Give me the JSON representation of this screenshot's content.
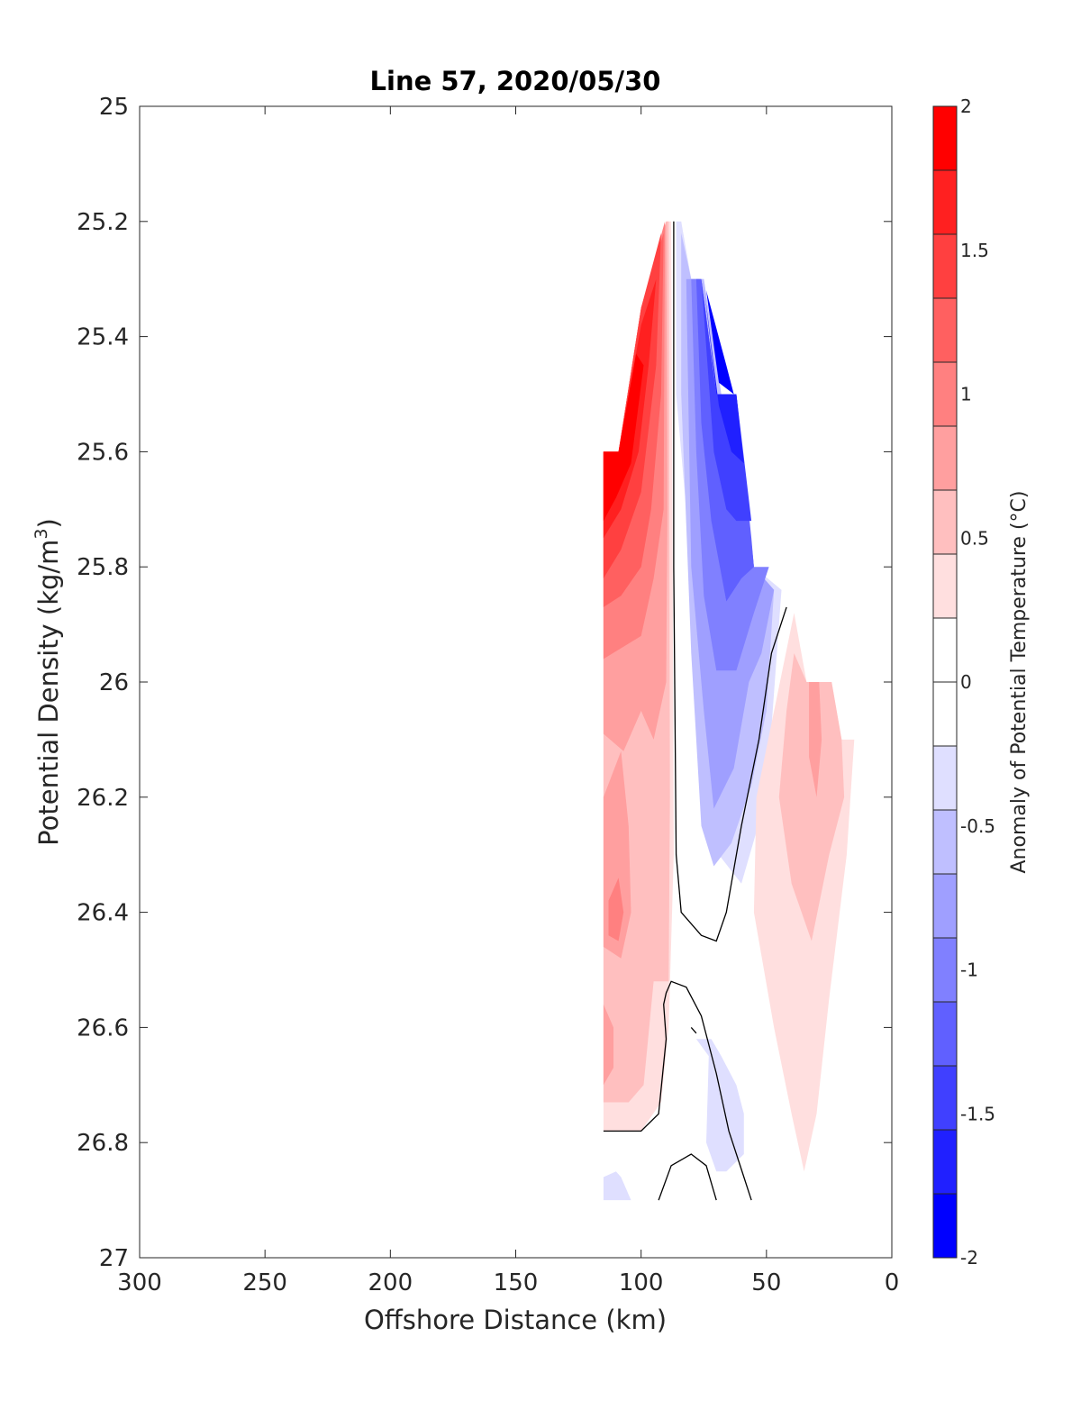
{
  "chart_data": {
    "type": "contour",
    "title": "Line 57, 2020/05/30",
    "xlabel": "Offshore Distance (km)",
    "ylabel_main": "Potential Density (kg/m",
    "ylabel_sup": "3",
    "ylabel_close": ")",
    "xlim": [
      300,
      0
    ],
    "ylim": [
      25,
      27
    ],
    "x_reversed": true,
    "y_reversed": true,
    "xticks": [
      300,
      250,
      200,
      150,
      100,
      50,
      0
    ],
    "xtick_labels": [
      "300",
      "250",
      "200",
      "150",
      "100",
      "50",
      "0"
    ],
    "yticks": [
      25,
      25.2,
      25.4,
      25.6,
      25.8,
      26,
      26.2,
      26.4,
      26.6,
      26.8,
      27
    ],
    "ytick_labels": [
      "25",
      "25.2",
      "25.4",
      "25.6",
      "25.8",
      "26",
      "26.2",
      "26.4",
      "26.6",
      "26.8",
      "27"
    ],
    "colorbar": {
      "label": "Anomaly of Potential Temperature (°C)",
      "min": -2,
      "max": 2,
      "step": 0.25,
      "ticks": [
        2,
        1.5,
        1,
        0.5,
        0,
        -0.5,
        -1,
        -1.5,
        -2
      ],
      "tick_labels": [
        "2",
        "1.5",
        "1",
        "0.5",
        "0",
        "-0.5",
        "-1",
        "-1.5",
        "-2"
      ],
      "colors_top_to_bottom": [
        "#ff0000",
        "#ff2020",
        "#ff4040",
        "#ff6060",
        "#ff8080",
        "#ff9f9f",
        "#ffbfbf",
        "#ffdfdf",
        "#ffffff",
        "#ffffff",
        "#dfdfff",
        "#bfbfff",
        "#9f9fff",
        "#8080ff",
        "#6060ff",
        "#4040ff",
        "#2020ff",
        "#0000ff"
      ]
    },
    "zero_contour_color": "#000000",
    "filled_regions": [
      {
        "level": 0.25,
        "color": "#ffdfdf",
        "points": [
          [
            115,
            25.6
          ],
          [
            109,
            25.6
          ],
          [
            100,
            25.35
          ],
          [
            90,
            25.2
          ],
          [
            88,
            25.2
          ],
          [
            87,
            26.3
          ],
          [
            89,
            26.6
          ],
          [
            92,
            26.73
          ],
          [
            100,
            26.78
          ],
          [
            115,
            26.78
          ]
        ]
      },
      {
        "level": 0.5,
        "color": "#ffbfbf",
        "points": [
          [
            115,
            25.6
          ],
          [
            109,
            25.6
          ],
          [
            100,
            25.35
          ],
          [
            90,
            25.2
          ],
          [
            89,
            25.2
          ],
          [
            88.5,
            26.2
          ],
          [
            89,
            26.52
          ],
          [
            95,
            26.52
          ],
          [
            99,
            26.7
          ],
          [
            105,
            26.73
          ],
          [
            115,
            26.73
          ]
        ]
      },
      {
        "level": 0.75,
        "color": "#ff9f9f",
        "points": [
          [
            115,
            25.6
          ],
          [
            109,
            25.6
          ],
          [
            100,
            25.35
          ],
          [
            90,
            25.2
          ],
          [
            89.5,
            25.7
          ],
          [
            90,
            26.0
          ],
          [
            95,
            26.1
          ],
          [
            100,
            26.05
          ],
          [
            107,
            26.12
          ],
          [
            115,
            26.09
          ]
        ]
      },
      {
        "level": 1.0,
        "color": "#ff8080",
        "points": [
          [
            115,
            25.6
          ],
          [
            109,
            25.6
          ],
          [
            100,
            25.35
          ],
          [
            90.5,
            25.2
          ],
          [
            91,
            25.7
          ],
          [
            95,
            25.82
          ],
          [
            100,
            25.92
          ],
          [
            115,
            25.96
          ]
        ]
      },
      {
        "level": 1.25,
        "color": "#ff6060",
        "points": [
          [
            115,
            25.6
          ],
          [
            109,
            25.6
          ],
          [
            100,
            25.35
          ],
          [
            91,
            25.22
          ],
          [
            92,
            25.5
          ],
          [
            96,
            25.7
          ],
          [
            100,
            25.8
          ],
          [
            108,
            25.85
          ],
          [
            115,
            25.87
          ]
        ]
      },
      {
        "level": 1.5,
        "color": "#ff4040",
        "points": [
          [
            115,
            25.6
          ],
          [
            109,
            25.6
          ],
          [
            100,
            25.35
          ],
          [
            92,
            25.22
          ],
          [
            94,
            25.45
          ],
          [
            100,
            25.67
          ],
          [
            108,
            25.77
          ],
          [
            115,
            25.82
          ]
        ]
      },
      {
        "level": 1.75,
        "color": "#ff2020",
        "points": [
          [
            115,
            25.6
          ],
          [
            109,
            25.6
          ],
          [
            100,
            25.38
          ],
          [
            94,
            25.3
          ],
          [
            97,
            25.45
          ],
          [
            101,
            25.6
          ],
          [
            108,
            25.7
          ],
          [
            115,
            25.75
          ]
        ]
      },
      {
        "level": 2.0,
        "color": "#ff0000",
        "points": [
          [
            115,
            25.6
          ],
          [
            109,
            25.6
          ],
          [
            102,
            25.43
          ],
          [
            99,
            25.45
          ],
          [
            104,
            25.62
          ],
          [
            110,
            25.68
          ],
          [
            115,
            25.72
          ]
        ]
      },
      {
        "level": 0.75,
        "color": "#ff9f9f",
        "points": [
          [
            115,
            26.2
          ],
          [
            108,
            26.12
          ],
          [
            105,
            26.25
          ],
          [
            104,
            26.4
          ],
          [
            108,
            26.48
          ],
          [
            115,
            26.46
          ]
        ]
      },
      {
        "level": 1.0,
        "color": "#ff8080",
        "points": [
          [
            113,
            26.38
          ],
          [
            109,
            26.34
          ],
          [
            107,
            26.4
          ],
          [
            109,
            26.45
          ],
          [
            113,
            26.44
          ]
        ]
      },
      {
        "level": 0.75,
        "color": "#ff9f9f",
        "points": [
          [
            115,
            26.56
          ],
          [
            111,
            26.6
          ],
          [
            111,
            26.67
          ],
          [
            115,
            26.7
          ]
        ]
      },
      {
        "level": -0.25,
        "color": "#dfdfff",
        "points": [
          [
            86,
            25.2
          ],
          [
            84,
            25.2
          ],
          [
            80,
            25.3
          ],
          [
            75,
            25.3
          ],
          [
            68,
            25.5
          ],
          [
            62,
            25.5
          ],
          [
            55,
            25.8
          ],
          [
            44,
            25.84
          ],
          [
            50,
            26.2
          ],
          [
            60,
            26.35
          ],
          [
            69,
            26.3
          ],
          [
            71,
            26.2
          ],
          [
            77,
            25.95
          ],
          [
            80,
            25.8
          ],
          [
            86,
            25.5
          ]
        ]
      },
      {
        "level": -0.5,
        "color": "#bfbfff",
        "points": [
          [
            84,
            25.22
          ],
          [
            80,
            25.3
          ],
          [
            75,
            25.3
          ],
          [
            68,
            25.5
          ],
          [
            62,
            25.5
          ],
          [
            55,
            25.8
          ],
          [
            47,
            25.84
          ],
          [
            50,
            26.05
          ],
          [
            56,
            26.18
          ],
          [
            64,
            26.28
          ],
          [
            71,
            26.32
          ],
          [
            76,
            26.25
          ],
          [
            80,
            25.95
          ],
          [
            84,
            25.5
          ]
        ]
      },
      {
        "level": -0.75,
        "color": "#9f9fff",
        "points": [
          [
            82,
            25.3
          ],
          [
            77,
            25.3
          ],
          [
            70,
            25.5
          ],
          [
            62,
            25.5
          ],
          [
            55,
            25.8
          ],
          [
            47,
            25.84
          ],
          [
            52,
            25.95
          ],
          [
            57,
            26.0
          ],
          [
            63,
            26.15
          ],
          [
            71,
            26.22
          ],
          [
            75,
            26.05
          ],
          [
            80,
            25.8
          ]
        ]
      },
      {
        "level": -1.0,
        "color": "#8080ff",
        "points": [
          [
            80,
            25.3
          ],
          [
            76,
            25.3
          ],
          [
            70,
            25.5
          ],
          [
            62,
            25.5
          ],
          [
            55,
            25.8
          ],
          [
            49,
            25.8
          ],
          [
            55,
            25.88
          ],
          [
            62,
            25.98
          ],
          [
            70,
            25.98
          ],
          [
            75,
            25.85
          ],
          [
            78,
            25.6
          ]
        ]
      },
      {
        "level": -1.25,
        "color": "#6060ff",
        "points": [
          [
            78,
            25.3
          ],
          [
            76,
            25.3
          ],
          [
            70,
            25.5
          ],
          [
            62,
            25.5
          ],
          [
            56,
            25.75
          ],
          [
            55,
            25.8
          ],
          [
            60,
            25.82
          ],
          [
            66,
            25.86
          ],
          [
            72,
            25.72
          ],
          [
            76,
            25.55
          ]
        ]
      },
      {
        "level": -1.5,
        "color": "#4040ff",
        "points": [
          [
            76,
            25.3
          ],
          [
            70,
            25.5
          ],
          [
            62,
            25.5
          ],
          [
            56,
            25.72
          ],
          [
            62,
            25.72
          ],
          [
            66,
            25.7
          ],
          [
            71,
            25.6
          ]
        ]
      },
      {
        "level": -1.75,
        "color": "#2020ff",
        "points": [
          [
            75,
            25.31
          ],
          [
            70,
            25.5
          ],
          [
            62,
            25.5
          ],
          [
            59,
            25.62
          ],
          [
            64,
            25.6
          ],
          [
            69,
            25.52
          ]
        ]
      },
      {
        "level": -2.0,
        "color": "#0000ff",
        "points": [
          [
            74,
            25.32
          ],
          [
            69,
            25.48
          ],
          [
            63,
            25.5
          ],
          [
            66,
            25.45
          ]
        ]
      },
      {
        "level": 0.25,
        "color": "#ffdfdf",
        "points": [
          [
            39,
            25.88
          ],
          [
            34,
            26.0
          ],
          [
            24,
            26.0
          ],
          [
            20,
            26.1
          ],
          [
            15,
            26.1
          ],
          [
            18,
            26.3
          ],
          [
            25,
            26.55
          ],
          [
            30,
            26.75
          ],
          [
            35,
            26.85
          ],
          [
            40,
            26.75
          ],
          [
            47,
            26.6
          ],
          [
            55,
            26.4
          ],
          [
            54,
            26.2
          ]
        ]
      },
      {
        "level": 0.5,
        "color": "#ffbfbf",
        "points": [
          [
            39,
            25.95
          ],
          [
            34,
            26.0
          ],
          [
            24,
            26.0
          ],
          [
            20,
            26.1
          ],
          [
            19,
            26.2
          ],
          [
            25,
            26.3
          ],
          [
            32,
            26.45
          ],
          [
            40,
            26.35
          ],
          [
            45,
            26.2
          ],
          [
            42,
            26.05
          ]
        ]
      },
      {
        "level": 0.75,
        "color": "#ff9f9f",
        "points": [
          [
            33,
            26.0
          ],
          [
            29,
            26.0
          ],
          [
            28,
            26.1
          ],
          [
            30,
            26.2
          ],
          [
            33,
            26.13
          ]
        ]
      },
      {
        "level": -0.25,
        "color": "#dfdfff",
        "points": [
          [
            78,
            26.62
          ],
          [
            73,
            26.65
          ],
          [
            74,
            26.8
          ],
          [
            70,
            26.85
          ],
          [
            66,
            26.85
          ],
          [
            59,
            26.82
          ],
          [
            59,
            26.75
          ],
          [
            62,
            26.7
          ],
          [
            68,
            26.65
          ],
          [
            72,
            26.62
          ]
        ]
      },
      {
        "level": -0.25,
        "color": "#dfdfff",
        "points": [
          [
            115,
            26.86
          ],
          [
            110,
            26.85
          ],
          [
            108,
            26.86
          ],
          [
            104,
            26.9
          ],
          [
            115,
            26.9
          ]
        ]
      }
    ],
    "zero_contours": [
      [
        [
          87,
          25.2
        ],
        [
          87,
          25.8
        ],
        [
          86,
          26.3
        ],
        [
          84,
          26.4
        ],
        [
          76,
          26.44
        ],
        [
          70,
          26.45
        ],
        [
          66,
          26.4
        ],
        [
          60,
          26.25
        ],
        [
          53,
          26.1
        ],
        [
          48,
          25.95
        ],
        [
          42,
          25.87
        ]
      ],
      [
        [
          115,
          26.78
        ],
        [
          100,
          26.78
        ],
        [
          93,
          26.75
        ],
        [
          90,
          26.62
        ],
        [
          91,
          26.56
        ],
        [
          90,
          26.54
        ],
        [
          88,
          26.52
        ],
        [
          82,
          26.53
        ],
        [
          76,
          26.58
        ],
        [
          70,
          26.68
        ],
        [
          65,
          26.78
        ],
        [
          59,
          26.86
        ],
        [
          56,
          26.9
        ]
      ],
      [
        [
          93,
          26.9
        ],
        [
          88,
          26.84
        ],
        [
          80,
          26.82
        ],
        [
          74,
          26.84
        ],
        [
          70,
          26.9
        ]
      ],
      [
        [
          80,
          26.6
        ],
        [
          78,
          26.61
        ]
      ]
    ]
  }
}
